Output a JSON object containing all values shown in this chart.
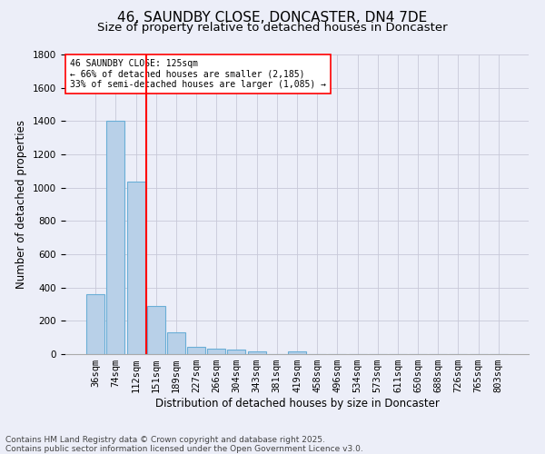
{
  "title_line1": "46, SAUNDBY CLOSE, DONCASTER, DN4 7DE",
  "title_line2": "Size of property relative to detached houses in Doncaster",
  "xlabel": "Distribution of detached houses by size in Doncaster",
  "ylabel": "Number of detached properties",
  "categories": [
    "36sqm",
    "74sqm",
    "112sqm",
    "151sqm",
    "189sqm",
    "227sqm",
    "266sqm",
    "304sqm",
    "343sqm",
    "381sqm",
    "419sqm",
    "458sqm",
    "496sqm",
    "534sqm",
    "573sqm",
    "611sqm",
    "650sqm",
    "688sqm",
    "726sqm",
    "765sqm",
    "803sqm"
  ],
  "values": [
    360,
    1400,
    1035,
    290,
    130,
    42,
    35,
    25,
    18,
    0,
    18,
    0,
    0,
    0,
    0,
    0,
    0,
    0,
    0,
    0,
    0
  ],
  "bar_color": "#b8d0e8",
  "bar_edge_color": "#6aaed6",
  "grid_color": "#c8c8d8",
  "background_color": "#eceef8",
  "vline_color": "red",
  "vline_position": 2.5,
  "annotation_text": "46 SAUNDBY CLOSE: 125sqm\n← 66% of detached houses are smaller (2,185)\n33% of semi-detached houses are larger (1,085) →",
  "annotation_box_color": "white",
  "annotation_box_edge": "red",
  "ylim": [
    0,
    1800
  ],
  "yticks": [
    0,
    200,
    400,
    600,
    800,
    1000,
    1200,
    1400,
    1600,
    1800
  ],
  "footer": "Contains HM Land Registry data © Crown copyright and database right 2025.\nContains public sector information licensed under the Open Government Licence v3.0.",
  "title_fontsize": 11,
  "subtitle_fontsize": 9.5,
  "axis_label_fontsize": 8.5,
  "tick_fontsize": 7.5,
  "annotation_fontsize": 7,
  "footer_fontsize": 6.5
}
